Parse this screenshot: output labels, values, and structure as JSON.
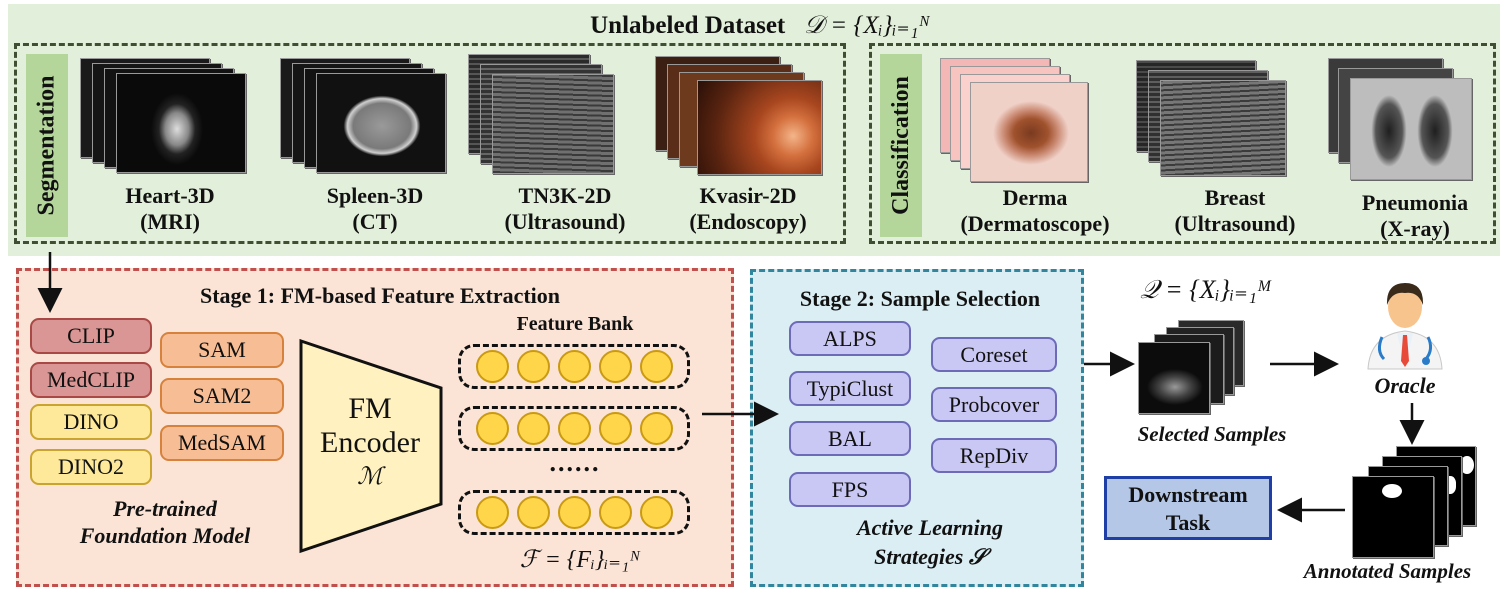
{
  "dataset": {
    "title": "Unlabeled Dataset",
    "formula": "𝒟 = {Xᵢ}ᵢ₌₁ᴺ",
    "segmentation_label": "Segmentation",
    "classification_label": "Classification",
    "segmentation": [
      {
        "line1": "Heart-3D",
        "line2": "(MRI)"
      },
      {
        "line1": "Spleen-3D",
        "line2": "(CT)"
      },
      {
        "line1": "TN3K-2D",
        "line2": "(Ultrasound)"
      },
      {
        "line1": "Kvasir-2D",
        "line2": "(Endoscopy)"
      }
    ],
    "classification": [
      {
        "line1": "Derma",
        "line2": "(Dermatoscope)"
      },
      {
        "line1": "Breast",
        "line2": "(Ultrasound)"
      },
      {
        "line1": "Pneumonia",
        "line2": "(X-ray)"
      }
    ]
  },
  "stage1": {
    "title": "Stage 1: FM-based Feature Extraction",
    "models_left": [
      "CLIP",
      "MedCLIP",
      "DINO",
      "DINO2"
    ],
    "models_right": [
      "SAM",
      "SAM2",
      "MedSAM"
    ],
    "models_caption_line1": "Pre-trained",
    "models_caption_line2": "Foundation Model",
    "encoder_line1": "FM",
    "encoder_line2": "Encoder",
    "encoder_symbol": "ℳ",
    "feature_bank_title": "Feature Bank",
    "ellipsis": "......",
    "feature_formula": "ℱ = {Fᵢ}ᵢ₌₁ᴺ"
  },
  "stage2": {
    "title": "Stage 2: Sample Selection",
    "strategies_left": [
      "ALPS",
      "TypiClust",
      "BAL",
      "FPS"
    ],
    "strategies_right": [
      "Coreset",
      "Probcover",
      "RepDiv"
    ],
    "caption_line1": "Active Learning",
    "caption_line2": "Strategies 𝒮"
  },
  "right": {
    "query_formula": "𝒬 = {Xᵢ}ᵢ₌₁ᴹ",
    "selected_label": "Selected Samples",
    "oracle_label": "Oracle",
    "annotated_label": "Annotated Samples",
    "downstream_line1": "Downstream",
    "downstream_line2": "Task"
  },
  "colors": {
    "top_bg": "#e2efda",
    "stage1_bg": "#fbe4d6",
    "stage2_bg": "#dbeef4",
    "downstream_bg": "#b4c7e7",
    "downstream_border": "#1f3fa6"
  }
}
